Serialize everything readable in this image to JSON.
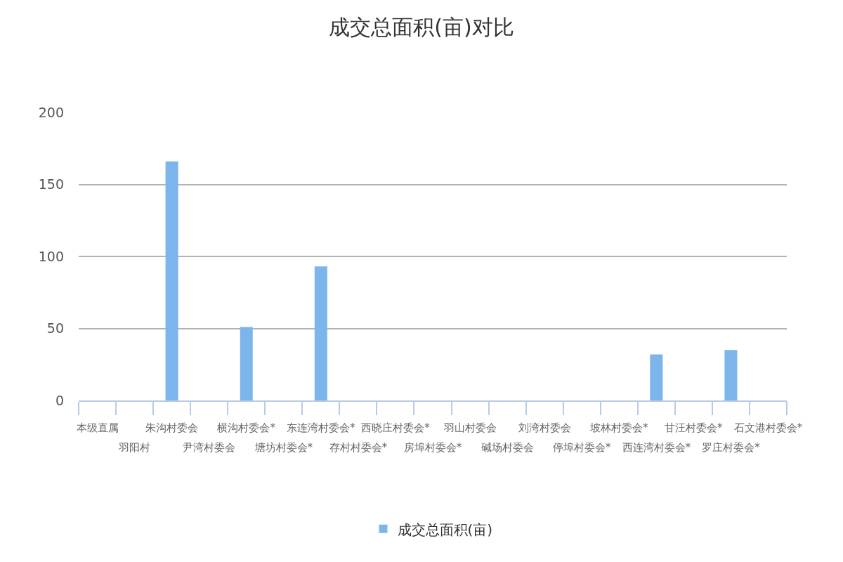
{
  "chart_data": {
    "type": "bar",
    "title": "成交总面积(亩)对比",
    "categories": [
      "本级直属",
      "羽阳村",
      "朱沟村委会",
      "尹湾村委会",
      "横沟村委会*",
      "塘坊村委会*",
      "东连湾村委会*",
      "存村村委会*",
      "西晓庄村委会*",
      "房埠村委会*",
      "羽山村委会",
      "碱场村委会",
      "刘湾村委会",
      "停埠村委会*",
      "坡林村委会*",
      "西连湾村委会*",
      "甘汪村委会*",
      "罗庄村委会*",
      "石文港村委会*"
    ],
    "series": [
      {
        "name": "成交总面积(亩)",
        "color": "#7cb5ec",
        "values": [
          null,
          null,
          166,
          null,
          51,
          null,
          93,
          null,
          null,
          null,
          null,
          null,
          null,
          null,
          null,
          32,
          null,
          35,
          null
        ]
      }
    ],
    "ylim": [
      0,
      200
    ],
    "yticks": [
      0,
      50,
      100,
      150,
      200
    ],
    "grid": "y",
    "legend": "bottom"
  }
}
